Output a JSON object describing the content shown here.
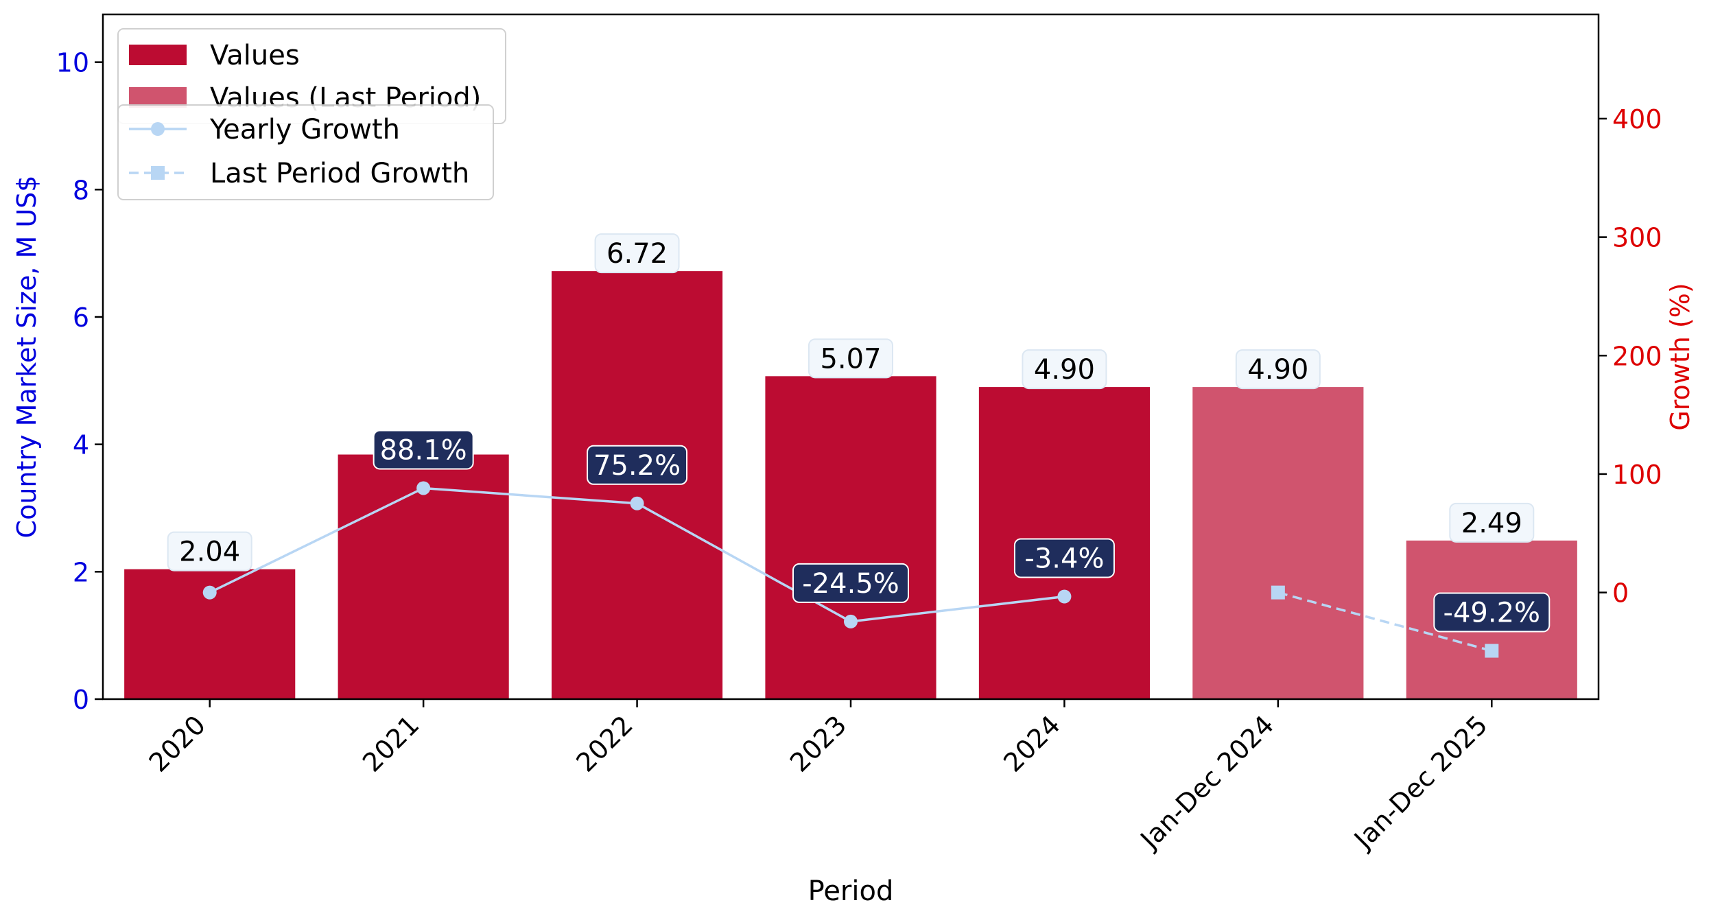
{
  "chart_data": {
    "type": "bar",
    "categories": [
      "2020",
      "2021",
      "2022",
      "2023",
      "2024",
      "Jan-Dec 2024",
      "Jan-Dec 2025"
    ],
    "series": [
      {
        "name": "Values",
        "values": [
          2.04,
          3.84,
          6.72,
          5.07,
          4.9,
          null,
          null
        ],
        "color": "#BC0C32"
      },
      {
        "name": "Values (Last Period)",
        "values": [
          null,
          null,
          null,
          null,
          null,
          4.9,
          2.49
        ],
        "color": "#D0546E"
      }
    ],
    "line_series": [
      {
        "name": "Yearly Growth",
        "values": [
          0,
          88.1,
          75.2,
          -24.5,
          -3.4,
          null,
          null
        ],
        "marker": "circle",
        "style": "solid",
        "color": "#B8D6F4"
      },
      {
        "name": "Last Period Growth",
        "values": [
          null,
          null,
          null,
          null,
          null,
          0,
          -49.2
        ],
        "marker": "square",
        "style": "dashed",
        "color": "#B8D6F4"
      }
    ],
    "bar_labels": [
      "2.04",
      "",
      "6.72",
      "5.07",
      "4.90",
      "4.90",
      "2.49"
    ],
    "growth_labels": [
      "",
      "88.1%",
      "75.2%",
      "-24.5%",
      "-3.4%",
      "",
      "-49.2%"
    ],
    "xlabel": "Period",
    "ylabel": "Country Market Size, M US$",
    "y2label": "Growth (%)",
    "ylim": [
      0,
      10.75
    ],
    "y2lim": [
      -90,
      488
    ],
    "yticks": [
      0,
      2,
      4,
      6,
      8,
      10
    ],
    "y2ticks": [
      0,
      100,
      200,
      300,
      400
    ],
    "ylabel_color": "#0000DD",
    "y2label_color": "#DD0000",
    "growth_box_color": "#1F2D5C",
    "legend_position": "top-left"
  }
}
